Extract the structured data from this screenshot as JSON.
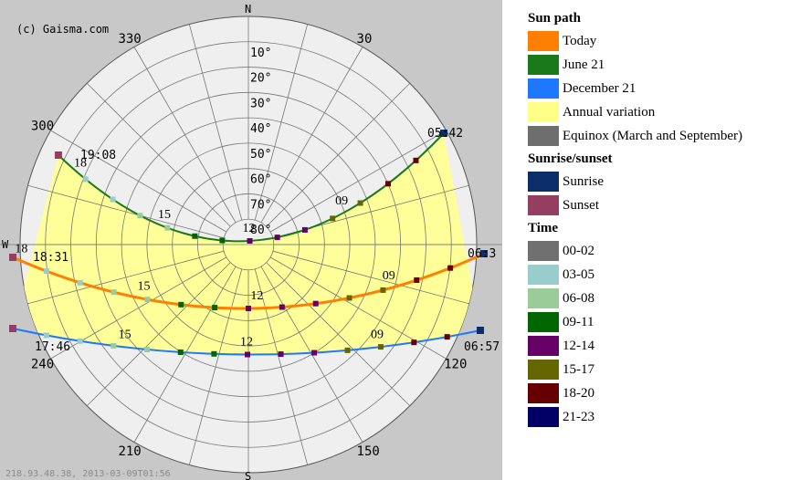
{
  "copyright": "(c) Gaisma.com",
  "footer": "218.93.48.38, 2013-03-09T01:56",
  "chart_data": {
    "type": "polar-sunpath",
    "compass": {
      "north": "N",
      "south": "S",
      "west": "W",
      "azimuth_labels": [
        {
          "az": 330,
          "label": "330"
        },
        {
          "az": 30,
          "label": "30"
        },
        {
          "az": 300,
          "label": "300"
        },
        {
          "az": 120,
          "label": "120"
        },
        {
          "az": 240,
          "label": "240"
        },
        {
          "az": 210,
          "label": "210"
        },
        {
          "az": 150,
          "label": "150"
        }
      ]
    },
    "elevation_labels": [
      "10°",
      "20°",
      "30°",
      "40°",
      "50°",
      "60°",
      "70°",
      "80°"
    ],
    "elevation_rings_deg": [
      10,
      20,
      30,
      40,
      50,
      60,
      70,
      80,
      90
    ],
    "spoke_step_deg": 15,
    "series": [
      {
        "name": "June 21",
        "key": "june",
        "color": "#1a7a1a",
        "sunrise_label": "05:42",
        "sunset_label": "19:08",
        "hour_labels": [
          {
            "text": "09",
            "t": 0.26
          },
          {
            "text": "12",
            "t": 0.5
          },
          {
            "text": "15",
            "t": 0.72
          },
          {
            "text": "18",
            "t": 0.94
          }
        ]
      },
      {
        "name": "Today",
        "key": "today",
        "color": "#ff8000",
        "sunrise_label": "06:3",
        "sunset_label": "18:31",
        "hour_labels": [
          {
            "text": "09",
            "t": 0.2
          },
          {
            "text": "12",
            "t": 0.48
          },
          {
            "text": "15",
            "t": 0.72
          },
          {
            "text": "18",
            "t": 0.98
          }
        ]
      },
      {
        "name": "December 21",
        "key": "december",
        "color": "#1e78ff",
        "sunrise_label": "06:57",
        "sunset_label": "17:46",
        "hour_labels": [
          {
            "text": "09",
            "t": 0.22
          },
          {
            "text": "12",
            "t": 0.5
          },
          {
            "text": "15",
            "t": 0.76
          }
        ]
      }
    ],
    "annual_variation_color": "#ffff99"
  },
  "legend": {
    "groups": [
      {
        "title": "Sun path",
        "items": [
          {
            "label": "Today",
            "color": "#ff8000"
          },
          {
            "label": "June 21",
            "color": "#1a7a1a"
          },
          {
            "label": "December 21",
            "color": "#1e78ff"
          },
          {
            "label": "Annual variation",
            "color": "#ffff88"
          },
          {
            "label": "Equinox (March and September)",
            "color": "#6e6e6e"
          }
        ]
      },
      {
        "title": "Sunrise/sunset",
        "items": [
          {
            "label": "Sunrise",
            "color": "#0b2e6b"
          },
          {
            "label": "Sunset",
            "color": "#963e62"
          }
        ]
      },
      {
        "title": "Time",
        "items": [
          {
            "label": "00-02",
            "color": "#707070"
          },
          {
            "label": "03-05",
            "color": "#99cccc"
          },
          {
            "label": "06-08",
            "color": "#99cc99"
          },
          {
            "label": "09-11",
            "color": "#006600"
          },
          {
            "label": "12-14",
            "color": "#660066"
          },
          {
            "label": "15-17",
            "color": "#666600"
          },
          {
            "label": "18-20",
            "color": "#660000"
          },
          {
            "label": "21-23",
            "color": "#000066"
          }
        ]
      }
    ]
  }
}
